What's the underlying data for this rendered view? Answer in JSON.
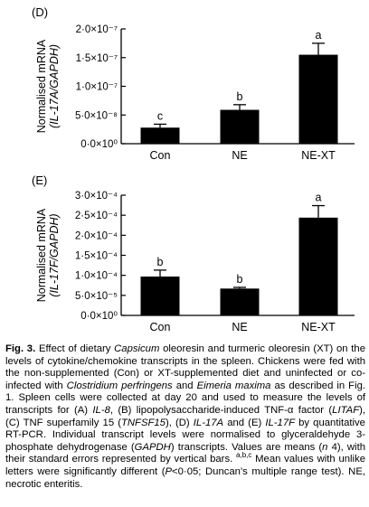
{
  "chart_data": [
    {
      "type": "bar",
      "panel": "(D)",
      "categories": [
        "Con",
        "NE",
        "NE-XT"
      ],
      "values": [
        2.8e-08,
        5.9e-08,
        1.55e-07
      ],
      "errors": [
        6e-09,
        9e-09,
        2e-08
      ],
      "letters": [
        "c",
        "b",
        "a"
      ],
      "ylabel_main": "Normalised mRNA",
      "ylabel_sub": "(IL-17A/GAPDH)",
      "ylim": [
        0,
        2e-07
      ],
      "tick_values": [
        0,
        5e-08,
        1e-07,
        1.5e-07,
        2e-07
      ],
      "tick_labels": [
        "0·0×10⁰",
        "5·0×10⁻⁸",
        "1·0×10⁻⁷",
        "1·5×10⁻⁷",
        "2·0×10⁻⁷"
      ],
      "bar_color": "#000000"
    },
    {
      "type": "bar",
      "panel": "(E)",
      "categories": [
        "Con",
        "NE",
        "NE-XT"
      ],
      "values": [
        9.7e-05,
        6.7e-05,
        0.000244
      ],
      "errors": [
        1.6e-05,
        3e-06,
        3e-05
      ],
      "letters": [
        "b",
        "b",
        "a"
      ],
      "ylabel_main": "Normalised mRNA",
      "ylabel_sub": "(IL-17F/GAPDH)",
      "ylim": [
        0,
        0.0003
      ],
      "tick_values": [
        0,
        5e-05,
        0.0001,
        0.00015,
        0.0002,
        0.00025,
        0.0003
      ],
      "tick_labels": [
        "0·0×10⁰",
        "5·0×10⁻⁵",
        "1·0×10⁻⁴",
        "1·5×10⁻⁴",
        "2·0×10⁻⁴",
        "2·5×10⁻⁴",
        "3·0×10⁻⁴"
      ],
      "bar_color": "#000000"
    }
  ],
  "caption": {
    "fig_label": "Fig. 3.",
    "segments": [
      {
        "t": " Effect of dietary ",
        "i": false
      },
      {
        "t": "Capsicum",
        "i": true
      },
      {
        "t": " oleoresin and turmeric oleoresin (XT) on the levels of cytokine/chemokine transcripts in the spleen. Chickens were fed with the non-supplemented (Con) or XT-supplemented diet and uninfected or co-infected with ",
        "i": false
      },
      {
        "t": "Clostridium perfringens",
        "i": true
      },
      {
        "t": " and ",
        "i": false
      },
      {
        "t": "Eimeria maxima",
        "i": true
      },
      {
        "t": " as described in Fig. 1. Spleen cells were collected at day 20 and used to measure the levels of transcripts for (A) ",
        "i": false
      },
      {
        "t": "IL-8",
        "i": true
      },
      {
        "t": ", (B) lipopolysaccharide-induced TNF-α factor (",
        "i": false
      },
      {
        "t": "LITAF",
        "i": true
      },
      {
        "t": "), (C) TNF superfamily 15 (",
        "i": false
      },
      {
        "t": "TNFSF15",
        "i": true
      },
      {
        "t": "), (D) ",
        "i": false
      },
      {
        "t": "IL-17A",
        "i": true
      },
      {
        "t": " and (E) ",
        "i": false
      },
      {
        "t": "IL-17F",
        "i": true
      },
      {
        "t": " by quantitative RT-PCR. Individual transcript levels were normalised to glyceraldehyde 3-phosphate dehydrogenase (",
        "i": false
      },
      {
        "t": "GAPDH",
        "i": true
      },
      {
        "t": ") transcripts. Values are means (",
        "i": false
      },
      {
        "t": "n",
        "i": true
      },
      {
        "t": " 4), with their standard errors represented by vertical bars. ",
        "i": false
      },
      {
        "t": "a,b,c",
        "i": false,
        "sup": true
      },
      {
        "t": " Mean values with unlike letters were significantly different (",
        "i": false
      },
      {
        "t": "P",
        "i": true
      },
      {
        "t": "<0·05; Duncan's multiple range test). NE, necrotic enteritis.",
        "i": false
      }
    ]
  }
}
